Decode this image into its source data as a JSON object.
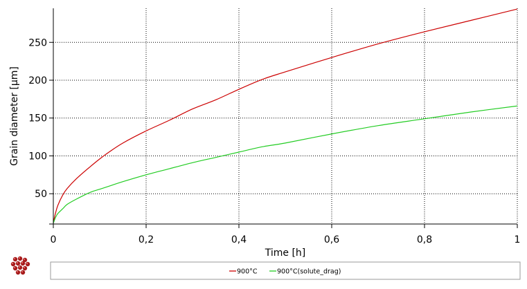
{
  "colors": {
    "background": "#ffffff",
    "series_red": "#cc0000",
    "series_green": "#22cc22",
    "grid": "#000000",
    "frame": "#9a9a9a",
    "logo": "#a61b1b"
  },
  "icons": {
    "logo": "molecule-logo-icon"
  },
  "chart_data": {
    "type": "line",
    "xlabel": "Time [h]",
    "ylabel": "Grain diameter [µm]",
    "xlim": [
      0,
      1
    ],
    "ylim": [
      10,
      295
    ],
    "x_ticks": [
      0,
      0.2,
      0.4,
      0.6,
      0.8,
      1
    ],
    "x_tick_labels": [
      "0",
      "0,2",
      "0,4",
      "0,6",
      "0,8",
      "1"
    ],
    "y_ticks": [
      50,
      100,
      150,
      200,
      250
    ],
    "y_tick_labels": [
      "50",
      "100",
      "150",
      "200",
      "250"
    ],
    "grid": true,
    "grid_style": "dotted",
    "legend_position": "bottom",
    "series": [
      {
        "name": "900°C",
        "color": "#cc0000",
        "x": [
          0,
          0.005,
          0.01,
          0.02,
          0.03,
          0.05,
          0.08,
          0.1,
          0.12,
          0.15,
          0.2,
          0.25,
          0.3,
          0.35,
          0.4,
          0.45,
          0.5,
          0.6,
          0.7,
          0.8,
          0.9,
          1.0
        ],
        "y": [
          12,
          25,
          35,
          48,
          57,
          70,
          86,
          96,
          105,
          117,
          133,
          147,
          162,
          174,
          188,
          201,
          211,
          230,
          248,
          264,
          279,
          294
        ]
      },
      {
        "name": "900°C(solute_drag)",
        "color": "#22cc22",
        "x": [
          0,
          0.005,
          0.01,
          0.02,
          0.03,
          0.05,
          0.08,
          0.1,
          0.12,
          0.15,
          0.2,
          0.25,
          0.3,
          0.35,
          0.4,
          0.45,
          0.5,
          0.6,
          0.7,
          0.8,
          0.9,
          1.0
        ],
        "y": [
          11,
          19,
          24,
          30,
          36,
          43,
          52,
          56,
          60,
          66,
          75,
          83,
          91,
          98,
          105,
          112,
          117,
          129,
          140,
          149,
          158,
          166
        ]
      }
    ]
  }
}
